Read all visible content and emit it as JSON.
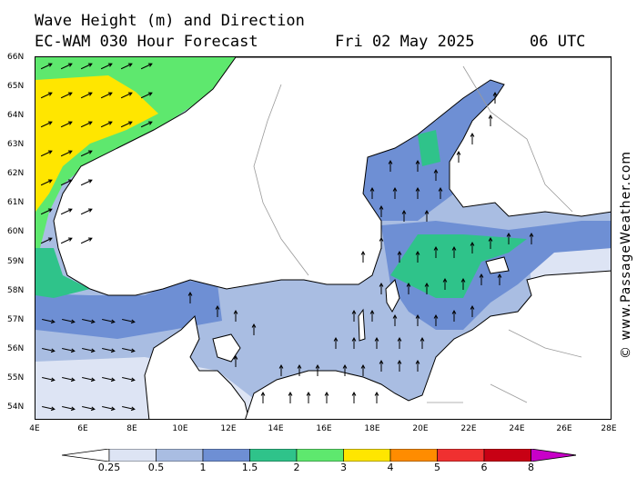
{
  "header": {
    "title": "Wave Height (m) and Direction",
    "subtitle": "EC-WAM 030 Hour Forecast",
    "date": "Fri 02 May 2025",
    "time": "06 UTC"
  },
  "axes": {
    "lat_labels": [
      "66N",
      "65N",
      "64N",
      "63N",
      "62N",
      "61N",
      "60N",
      "59N",
      "58N",
      "57N",
      "56N",
      "55N",
      "54N"
    ],
    "lon_labels": [
      "4E",
      "6E",
      "8E",
      "10E",
      "12E",
      "14E",
      "16E",
      "18E",
      "20E",
      "22E",
      "24E",
      "26E",
      "28E"
    ]
  },
  "credit": "© www.PassageWeather.com",
  "legend": {
    "ticks": [
      "0.25",
      "0.5",
      "1",
      "1.5",
      "2",
      "3",
      "4",
      "5",
      "6",
      "8"
    ],
    "colors": [
      "#ffffff",
      "#dde4f4",
      "#a9bde2",
      "#6e8fd4",
      "#2fc38a",
      "#5ee86e",
      "#ffe600",
      "#ff8c00",
      "#f03030",
      "#c80014",
      "#c800c8"
    ]
  },
  "colors": {
    "land": "#ffffff",
    "coast": "#000000",
    "border": "#9a9a9a"
  }
}
